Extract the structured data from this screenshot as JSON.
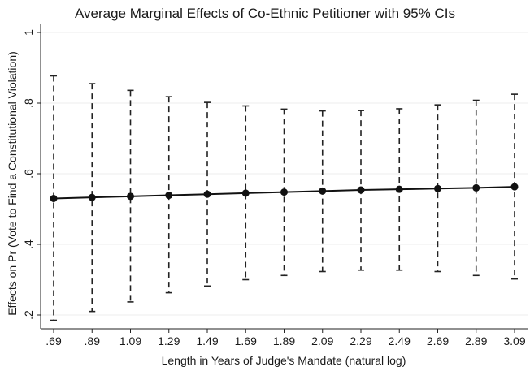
{
  "chart_data": {
    "type": "line",
    "title": "Average Marginal Effects of Co-Ethnic Petitioner with 95% CIs",
    "xlabel": "Length in Years of Judge's Mandate (natural log)",
    "ylabel": "Effects on Pr (Vote to Find a Constitutional Violation)",
    "x_tick_labels": [
      ".69",
      ".89",
      "1.09",
      "1.29",
      "1.49",
      "1.69",
      "1.89",
      "2.09",
      "2.29",
      "2.49",
      "2.69",
      "2.89",
      "3.09"
    ],
    "x": [
      0.69,
      0.89,
      1.09,
      1.29,
      1.49,
      1.69,
      1.89,
      2.09,
      2.29,
      2.49,
      2.69,
      2.89,
      3.09
    ],
    "y_ticks": [
      0.2,
      0.4,
      0.6,
      0.8,
      1.0
    ],
    "y_tick_labels": [
      ".2",
      ".4",
      ".6",
      ".8",
      "1"
    ],
    "ylim": [
      0.17,
      1.02
    ],
    "grid": true,
    "series": [
      {
        "values": [
          0.53,
          0.533,
          0.536,
          0.539,
          0.542,
          0.545,
          0.548,
          0.551,
          0.554,
          0.556,
          0.558,
          0.56,
          0.563
        ],
        "ci_lower": [
          0.185,
          0.21,
          0.237,
          0.263,
          0.282,
          0.3,
          0.312,
          0.323,
          0.327,
          0.327,
          0.323,
          0.312,
          0.302
        ],
        "ci_upper": [
          0.877,
          0.855,
          0.836,
          0.818,
          0.802,
          0.792,
          0.783,
          0.778,
          0.779,
          0.784,
          0.795,
          0.808,
          0.825
        ]
      }
    ]
  }
}
